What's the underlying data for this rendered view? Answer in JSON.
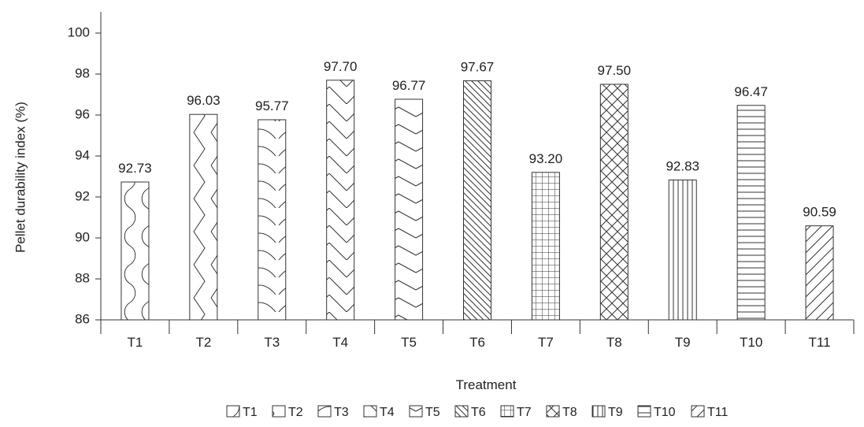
{
  "chart_data": {
    "type": "bar",
    "title": "",
    "xlabel": "Treatment",
    "ylabel": "Pellet durability index (%)",
    "ylim": [
      86,
      100
    ],
    "yticks": [
      86,
      88,
      90,
      92,
      94,
      96,
      98,
      100
    ],
    "categories": [
      "T1",
      "T2",
      "T3",
      "T4",
      "T5",
      "T6",
      "T7",
      "T8",
      "T9",
      "T10",
      "T11"
    ],
    "values": [
      92.73,
      96.03,
      95.77,
      97.7,
      96.77,
      97.67,
      93.2,
      97.5,
      92.83,
      96.47,
      90.59
    ],
    "value_labels": [
      "92.73",
      "96.03",
      "95.77",
      "97.70",
      "96.77",
      "97.67",
      "93.20",
      "97.50",
      "92.83",
      "96.47",
      "90.59"
    ],
    "patterns": [
      "waves",
      "zigzag",
      "arcs",
      "chevron-up",
      "chevron-down",
      "diagonal-down",
      "grid",
      "crosshatch",
      "vertical",
      "horizontal",
      "diagonal-up"
    ],
    "legend": {
      "position": "bottom",
      "entries": [
        "T1",
        "T2",
        "T3",
        "T4",
        "T5",
        "T6",
        "T7",
        "T8",
        "T9",
        "T10",
        "T11"
      ]
    },
    "grid": false,
    "colors": {
      "bar_fill": "#ffffff",
      "stroke": "#333333"
    }
  }
}
